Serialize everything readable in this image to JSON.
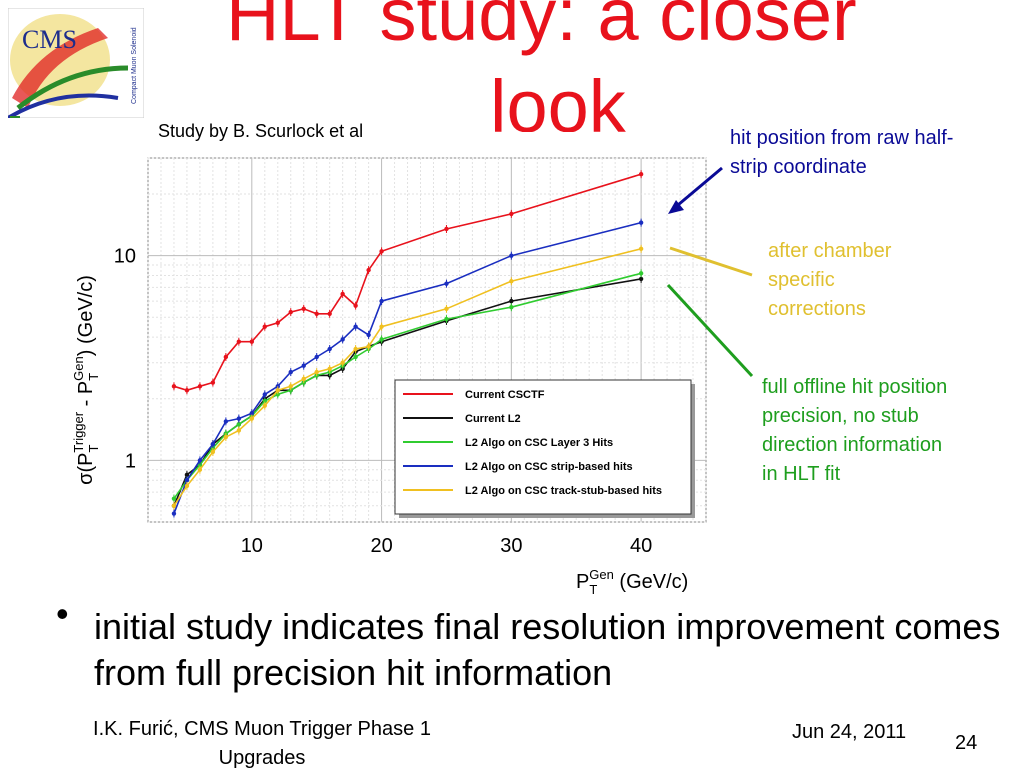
{
  "slide": {
    "title_line1": "HLT study: a closer",
    "title_line2": "look",
    "study_by": "Study by B. Scurlock et al",
    "logo_text": "CMS",
    "logo_subtext": "Compact Muon Solenoid",
    "annotations": [
      {
        "text": "hit position from raw half-strip coordinate",
        "color": "#0a0a96"
      },
      {
        "text": "after chamber specific corrections",
        "color": "#e0c030"
      },
      {
        "text": "full offline hit position precision, no stub direction information in HLT fit",
        "color": "#1e9e1e"
      }
    ],
    "bullet": "initial study indicates final resolution improvement comes from full precision hit information",
    "footer_left": "I.K. Furić, CMS Muon Trigger Phase 1 Upgrades",
    "footer_date": "Jun 24, 2011",
    "page_number": "24"
  },
  "chart_data": {
    "type": "line",
    "xlabel": "P_T^Gen (GeV/c)",
    "ylabel": "σ(P_T^Trigger - P_T^Gen) (GeV/c)",
    "x_scale": "linear",
    "y_scale": "log",
    "xlim": [
      2,
      45
    ],
    "ylim": [
      0.5,
      30
    ],
    "x_ticks": [
      "10",
      "20",
      "30",
      "40"
    ],
    "y_ticks": [
      "1",
      "10"
    ],
    "grid": true,
    "legend_position": "lower-right",
    "series": [
      {
        "name": "Current CSCTF",
        "color": "#e8121c",
        "x": [
          4,
          5,
          6,
          7,
          8,
          9,
          10,
          11,
          12,
          13,
          14,
          15,
          16,
          17,
          18,
          19,
          20,
          25,
          30,
          40
        ],
        "y": [
          2.3,
          2.2,
          2.3,
          2.4,
          3.2,
          3.8,
          3.8,
          4.5,
          4.7,
          5.3,
          5.5,
          5.2,
          5.2,
          6.5,
          5.7,
          8.5,
          10.5,
          13.5,
          16,
          25
        ]
      },
      {
        "name": "Current L2",
        "color": "#111111",
        "x": [
          4,
          5,
          6,
          7,
          8,
          9,
          10,
          11,
          12,
          13,
          14,
          15,
          16,
          17,
          18,
          19,
          20,
          25,
          30,
          40
        ],
        "y": [
          0.6,
          0.85,
          0.95,
          1.2,
          1.35,
          1.5,
          1.65,
          2.0,
          2.2,
          2.2,
          2.4,
          2.6,
          2.6,
          2.8,
          3.4,
          3.6,
          3.8,
          4.8,
          6.0,
          7.7
        ]
      },
      {
        "name": "L2 Algo on CSC Layer 3 Hits",
        "color": "#30cc30",
        "x": [
          4,
          5,
          6,
          7,
          8,
          9,
          10,
          11,
          12,
          13,
          14,
          15,
          16,
          17,
          18,
          19,
          20,
          25,
          30,
          40
        ],
        "y": [
          0.65,
          0.8,
          0.95,
          1.15,
          1.35,
          1.5,
          1.65,
          1.95,
          2.1,
          2.2,
          2.4,
          2.6,
          2.7,
          2.9,
          3.2,
          3.5,
          3.9,
          4.9,
          5.6,
          8.2
        ]
      },
      {
        "name": "L2 Algo on CSC strip-based hits",
        "color": "#1a2ec0",
        "x": [
          4,
          5,
          6,
          7,
          8,
          9,
          10,
          11,
          12,
          13,
          14,
          15,
          16,
          17,
          18,
          19,
          20,
          25,
          30,
          40
        ],
        "y": [
          0.55,
          0.8,
          1.0,
          1.2,
          1.55,
          1.6,
          1.7,
          2.1,
          2.3,
          2.7,
          2.9,
          3.2,
          3.5,
          3.9,
          4.5,
          4.1,
          6.0,
          7.3,
          10,
          14.5
        ]
      },
      {
        "name": "L2 Algo on CSC track-stub-based hits",
        "color": "#f0c020",
        "x": [
          4,
          5,
          6,
          7,
          8,
          9,
          10,
          11,
          12,
          13,
          14,
          15,
          16,
          17,
          18,
          19,
          20,
          25,
          30,
          40
        ],
        "y": [
          0.6,
          0.75,
          0.9,
          1.1,
          1.3,
          1.4,
          1.6,
          1.85,
          2.2,
          2.3,
          2.5,
          2.7,
          2.8,
          3.0,
          3.5,
          3.6,
          4.5,
          5.5,
          7.5,
          10.8
        ]
      }
    ]
  }
}
